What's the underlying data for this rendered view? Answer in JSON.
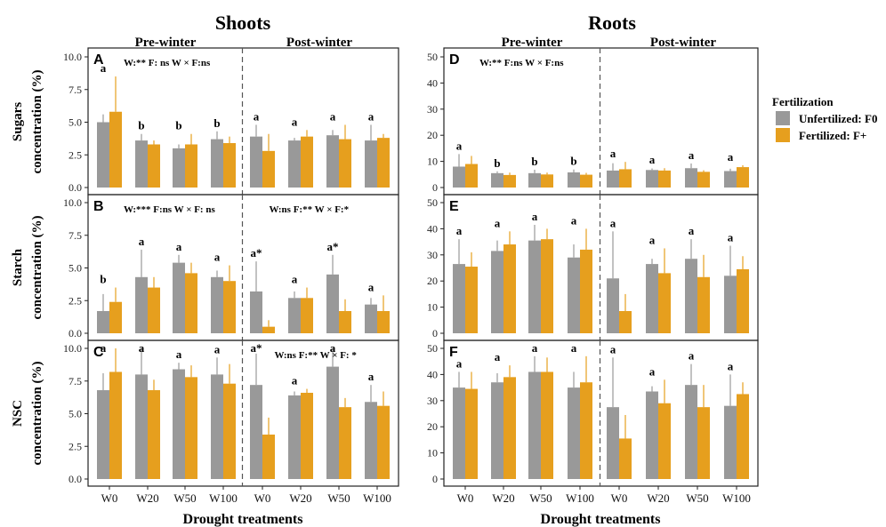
{
  "figure": {
    "column_titles": [
      "Shoots",
      "Roots"
    ],
    "period_labels": [
      "Pre-winter",
      "Post-winter"
    ],
    "row_ylabels": [
      [
        "Sugars",
        "concentration (%)"
      ],
      [
        "Starch",
        "concentration (%)"
      ],
      [
        "NSC",
        "concentration (%)"
      ]
    ],
    "xlabel": "Drought treatments",
    "legend": {
      "title": "Fertilization",
      "items": [
        {
          "label": "Unfertilized: F0",
          "color": "#999999"
        },
        {
          "label": "Fertilized: F+",
          "color": "#E69F1E"
        }
      ]
    }
  },
  "chart_data": [
    {
      "type": "bar",
      "panel": "A",
      "categories": [
        "W0",
        "W20",
        "W50",
        "W100",
        "W0",
        "W20",
        "W50",
        "W100"
      ],
      "ylim": [
        0,
        10
      ],
      "yticks": [
        0,
        2.5,
        5,
        7.5,
        10
      ],
      "series": [
        {
          "name": "Unfertilized: F0",
          "values": [
            5.0,
            3.6,
            3.0,
            3.7,
            3.9,
            3.6,
            4.0,
            3.6
          ],
          "err": [
            0.6,
            0.5,
            0.3,
            0.6,
            0.9,
            0.2,
            0.4,
            1.2
          ]
        },
        {
          "name": "Fertilized: F+",
          "values": [
            5.8,
            3.3,
            3.3,
            3.4,
            2.8,
            3.9,
            3.7,
            3.8
          ],
          "err": [
            2.7,
            0.3,
            0.8,
            0.5,
            1.3,
            0.5,
            1.1,
            0.3
          ]
        }
      ],
      "stat_text": "W:** F: ns W × F:ns",
      "letters": [
        "a",
        "b",
        "b",
        "b",
        "a",
        "a",
        "a",
        "a"
      ]
    },
    {
      "type": "bar",
      "panel": "B",
      "categories": [
        "W0",
        "W20",
        "W50",
        "W100",
        "W0",
        "W20",
        "W50",
        "W100"
      ],
      "ylim": [
        0,
        10
      ],
      "yticks": [
        0,
        2.5,
        5,
        7.5,
        10
      ],
      "series": [
        {
          "name": "Unfertilized: F0",
          "values": [
            1.7,
            4.3,
            5.4,
            4.3,
            3.2,
            2.7,
            4.5,
            2.2
          ],
          "err": [
            1.3,
            2.1,
            0.6,
            0.5,
            2.3,
            0.5,
            1.5,
            0.5
          ]
        },
        {
          "name": "Fertilized: F+",
          "values": [
            2.4,
            3.5,
            4.6,
            4.0,
            0.5,
            2.7,
            1.7,
            1.7
          ],
          "err": [
            1.1,
            0.8,
            0.8,
            1.2,
            0.5,
            0.8,
            0.9,
            1.2
          ]
        }
      ],
      "stat_text_left": "W:*** F:ns W × F: ns",
      "stat_text_right": "W:ns F:** W × F:*",
      "letters": [
        "b",
        "a",
        "a",
        "a",
        "a*",
        "a",
        "a*",
        "a"
      ]
    },
    {
      "type": "bar",
      "panel": "C",
      "categories": [
        "W0",
        "W20",
        "W50",
        "W100",
        "W0",
        "W20",
        "W50",
        "W100"
      ],
      "ylim": [
        0,
        10
      ],
      "yticks": [
        0,
        2.5,
        5,
        7.5,
        10
      ],
      "series": [
        {
          "name": "Unfertilized: F0",
          "values": [
            6.8,
            8.0,
            8.4,
            8.0,
            7.2,
            6.4,
            8.6,
            5.9
          ],
          "err": [
            1.3,
            2.0,
            0.5,
            1.3,
            2.4,
            0.3,
            1.4,
            1.3
          ]
        },
        {
          "name": "Fertilized: F+",
          "values": [
            8.2,
            6.8,
            7.8,
            7.3,
            3.4,
            6.6,
            5.5,
            5.6
          ],
          "err": [
            1.8,
            0.8,
            0.9,
            1.5,
            1.3,
            0.3,
            0.7,
            1.1
          ]
        }
      ],
      "stat_text": "W:ns F:** W × F: *",
      "letters": [
        "a",
        "a",
        "a",
        "a",
        "a*",
        "a",
        "a",
        "a"
      ]
    },
    {
      "type": "bar",
      "panel": "D",
      "categories": [
        "W0",
        "W20",
        "W50",
        "W100",
        "W0",
        "W20",
        "W50",
        "W100"
      ],
      "ylim": [
        0,
        50
      ],
      "yticks": [
        0,
        10,
        20,
        30,
        40,
        50
      ],
      "series": [
        {
          "name": "Unfertilized: F0",
          "values": [
            8.0,
            5.5,
            5.5,
            5.8,
            6.5,
            6.7,
            7.4,
            6.3
          ],
          "err": [
            4.8,
            0.7,
            1.3,
            1.1,
            2.8,
            0.6,
            1.8,
            0.9
          ]
        },
        {
          "name": "Fertilized: F+",
          "values": [
            9.0,
            4.8,
            5.0,
            4.9,
            7.0,
            6.5,
            6.0,
            7.8
          ],
          "err": [
            3.1,
            0.9,
            0.7,
            0.7,
            2.8,
            0.9,
            0.6,
            0.7
          ]
        }
      ],
      "stat_text": "W:** F:ns W × F:ns",
      "letters": [
        "a",
        "b",
        "b",
        "b",
        "a",
        "a",
        "a",
        "a"
      ]
    },
    {
      "type": "bar",
      "panel": "E",
      "categories": [
        "W0",
        "W20",
        "W50",
        "W100",
        "W0",
        "W20",
        "W50",
        "W100"
      ],
      "ylim": [
        0,
        50
      ],
      "yticks": [
        0,
        10,
        20,
        30,
        40,
        50
      ],
      "series": [
        {
          "name": "Unfertilized: F0",
          "values": [
            26.5,
            31.5,
            35.5,
            29.0,
            21.0,
            26.5,
            28.5,
            22.0
          ],
          "err": [
            9.5,
            4.0,
            6.0,
            5.0,
            18.0,
            2.0,
            7.5,
            11.5
          ]
        },
        {
          "name": "Fertilized: F+",
          "values": [
            25.5,
            34.0,
            36.0,
            32.0,
            8.5,
            23.0,
            21.5,
            24.5
          ],
          "err": [
            5.5,
            5.0,
            4.0,
            8.0,
            6.5,
            9.5,
            8.5,
            5.0
          ]
        }
      ],
      "letters": [
        "a",
        "a",
        "a",
        "a",
        "a",
        "a",
        "a",
        "a"
      ]
    },
    {
      "type": "bar",
      "panel": "F",
      "categories": [
        "W0",
        "W20",
        "W50",
        "W100",
        "W0",
        "W20",
        "W50",
        "W100"
      ],
      "ylim": [
        0,
        50
      ],
      "yticks": [
        0,
        10,
        20,
        30,
        40,
        50
      ],
      "series": [
        {
          "name": "Unfertilized: F0",
          "values": [
            35.0,
            37.0,
            41.0,
            35.0,
            27.5,
            33.5,
            36.0,
            28.0
          ],
          "err": [
            6.0,
            3.5,
            6.0,
            6.0,
            19.0,
            2.0,
            8.0,
            12.0
          ]
        },
        {
          "name": "Fertilized: F+",
          "values": [
            34.5,
            39.0,
            41.0,
            37.0,
            15.5,
            29.0,
            27.5,
            32.5
          ],
          "err": [
            6.5,
            4.5,
            5.5,
            10.0,
            9.0,
            9.0,
            8.5,
            4.5
          ]
        }
      ],
      "letters": [
        "a",
        "a",
        "a",
        "a",
        "a",
        "a",
        "a",
        "a"
      ]
    }
  ]
}
